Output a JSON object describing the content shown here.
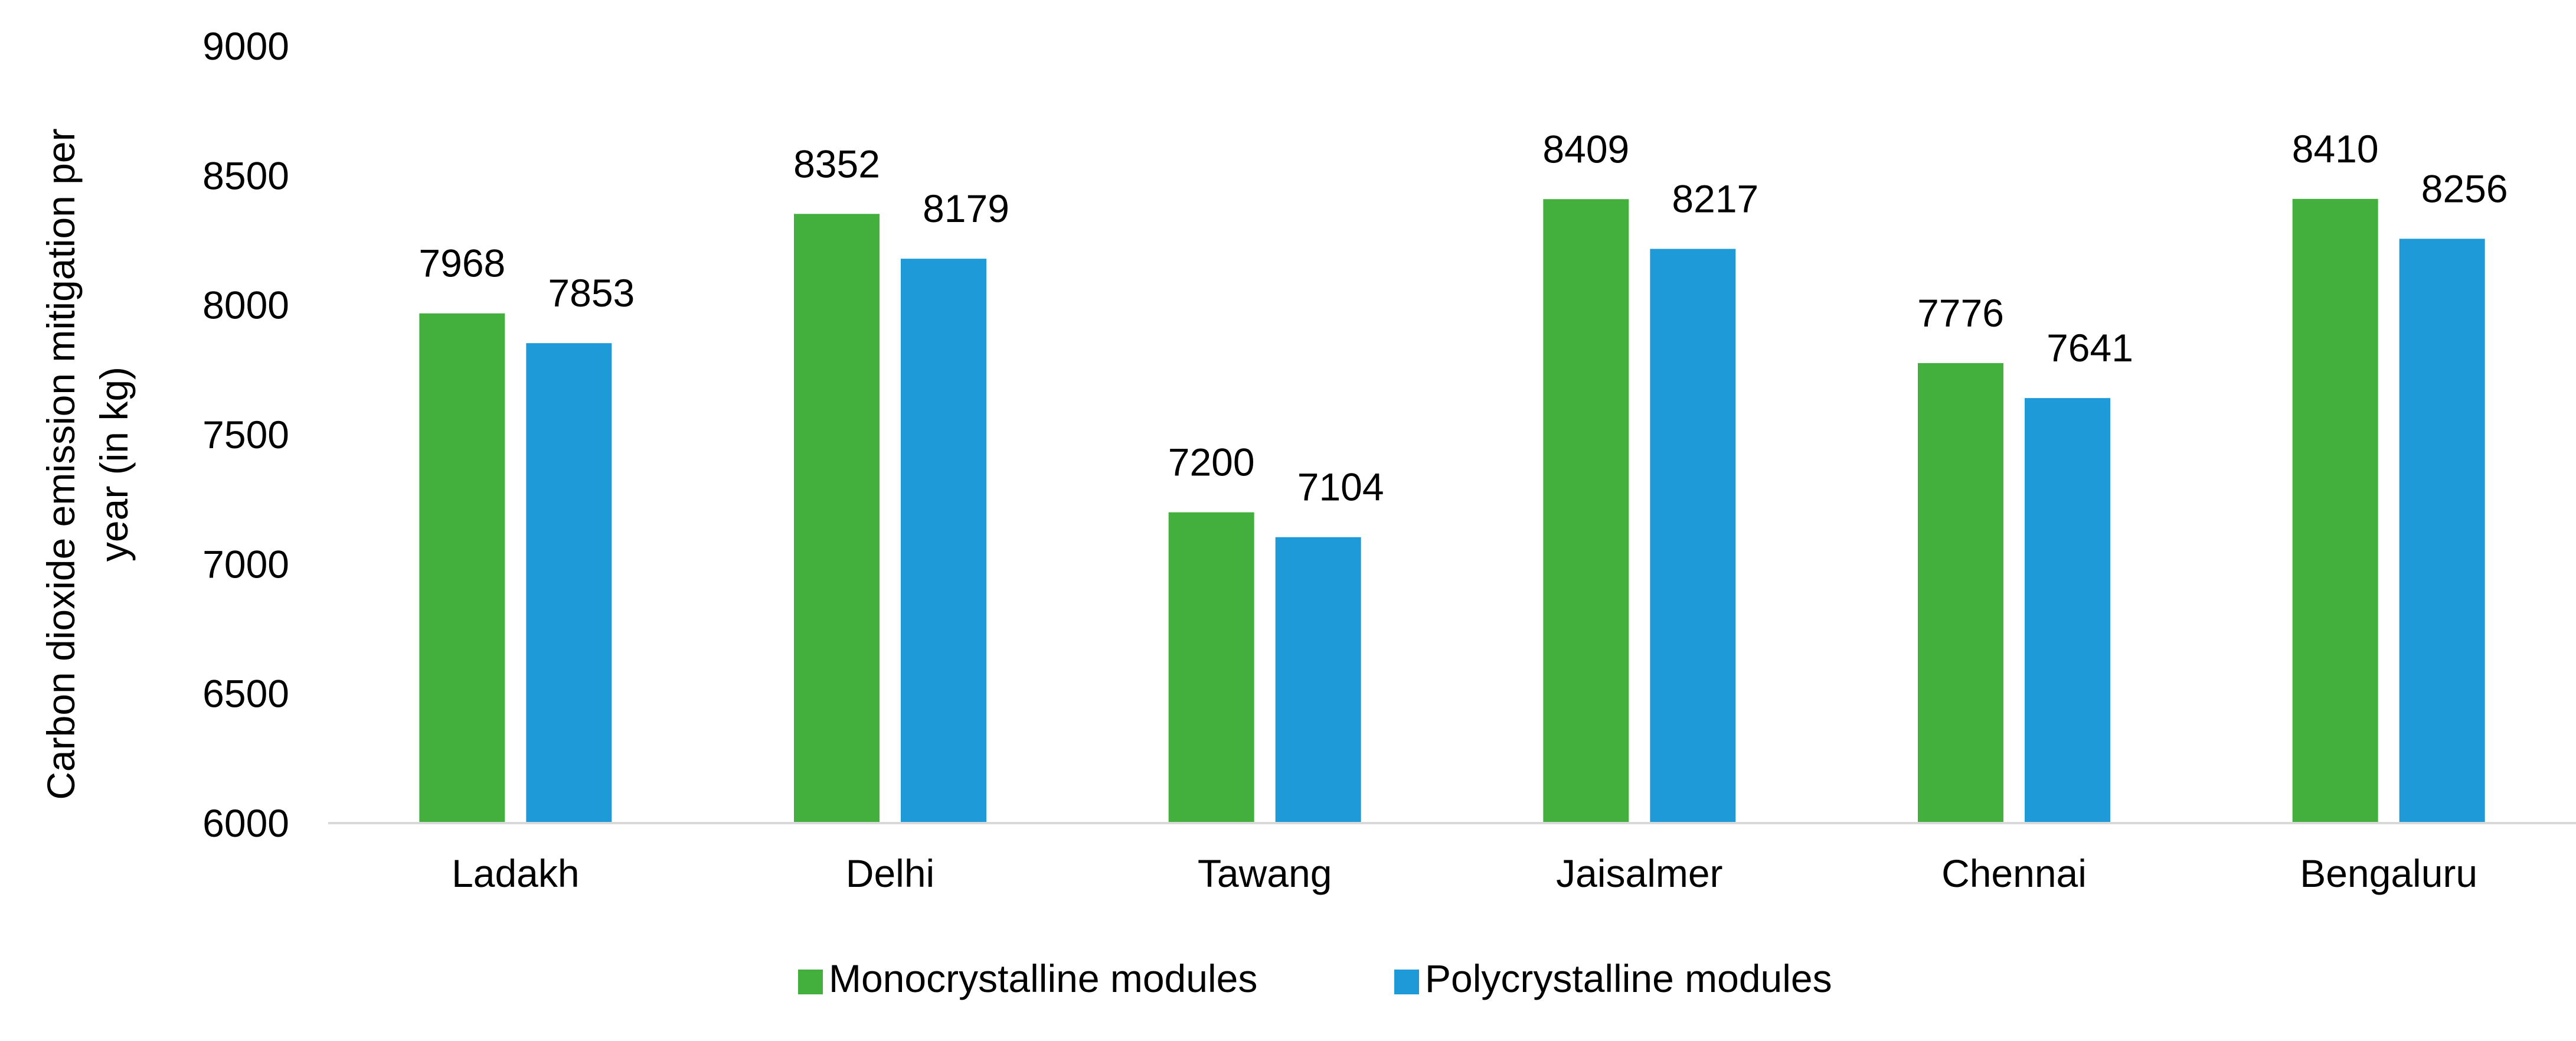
{
  "chart_data": {
    "type": "bar",
    "categories": [
      "Ladakh",
      "Delhi",
      "Tawang",
      "Jaisalmer",
      "Chennai",
      "Bengaluru"
    ],
    "series": [
      {
        "name": "Monocrystalline modules",
        "color": "#43B03E",
        "values": [
          7968,
          8352,
          7200,
          8409,
          7776,
          8410
        ]
      },
      {
        "name": "Polycrystalline modules",
        "color": "#1E9AD8",
        "values": [
          7853,
          8179,
          7104,
          8217,
          7641,
          8256
        ]
      }
    ],
    "title": "",
    "xlabel": "",
    "ylabel_lines": [
      "Carbon dioxide emission mitigation per",
      "year (in kg)"
    ],
    "ylim": [
      6000,
      9000
    ],
    "yticks": [
      6000,
      6500,
      7000,
      7500,
      8000,
      8500,
      9000
    ],
    "grid": false,
    "legend_position": "bottom-center",
    "data_labels": true,
    "axis_color": "#D9D9D9"
  }
}
